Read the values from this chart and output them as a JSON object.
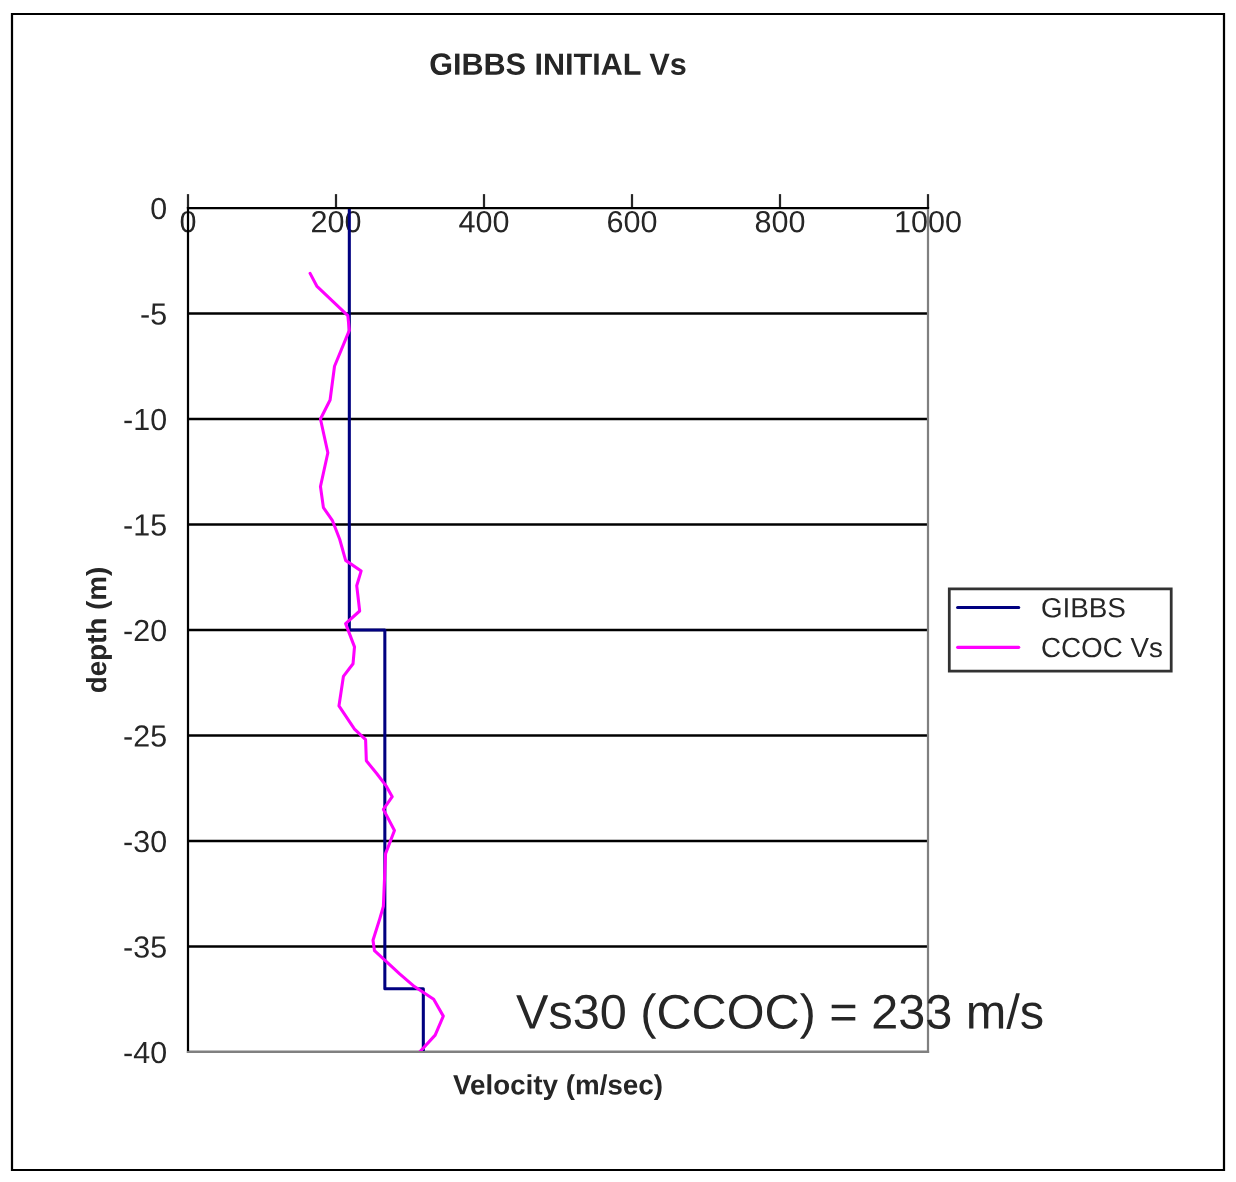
{
  "chart_data": {
    "type": "line",
    "title": "GIBBS INITIAL Vs",
    "xlabel": "Velocity (m/sec)",
    "ylabel": "depth (m)",
    "xlim": [
      0,
      1000
    ],
    "xticks": [
      0,
      200,
      400,
      600,
      800,
      1000
    ],
    "ylim": [
      -40,
      0
    ],
    "yticks": [
      -40,
      -35,
      -30,
      -25,
      -20,
      -15,
      -10,
      -5,
      0
    ],
    "grid": "y",
    "legend": "right",
    "series": [
      {
        "name": "GIBBS",
        "color": "#000080",
        "x": [
          218,
          218,
          266,
          266,
          318,
          318
        ],
        "values": [
          0,
          -20,
          -20,
          -37,
          -37,
          -40
        ]
      },
      {
        "name": "CCOC Vs",
        "color": "#ff00ff",
        "x": [
          165,
          174,
          216,
          218,
          198,
          192,
          179,
          189,
          179,
          183,
          195,
          205,
          213,
          234,
          228,
          232,
          213,
          225,
          223,
          210,
          204,
          225,
          240,
          241,
          255,
          268,
          276,
          264,
          279,
          267,
          264,
          259,
          250,
          252,
          286,
          306,
          332,
          345,
          334,
          313
        ],
        "values": [
          -3.1,
          -3.7,
          -5.1,
          -5.8,
          -7.5,
          -9.1,
          -10.0,
          -11.6,
          -13.2,
          -14.2,
          -14.8,
          -15.7,
          -16.7,
          -17.2,
          -17.9,
          -19.1,
          -19.7,
          -20.8,
          -21.6,
          -22.2,
          -23.6,
          -24.7,
          -25.2,
          -26.2,
          -26.8,
          -27.4,
          -27.9,
          -28.5,
          -29.5,
          -30.6,
          -33.1,
          -33.7,
          -34.7,
          -35.2,
          -36.3,
          -36.9,
          -37.5,
          -38.3,
          -39.2,
          -40.0
        ]
      }
    ],
    "annotations": [
      "Vs30 (CCOC) = 233 m/s"
    ]
  }
}
